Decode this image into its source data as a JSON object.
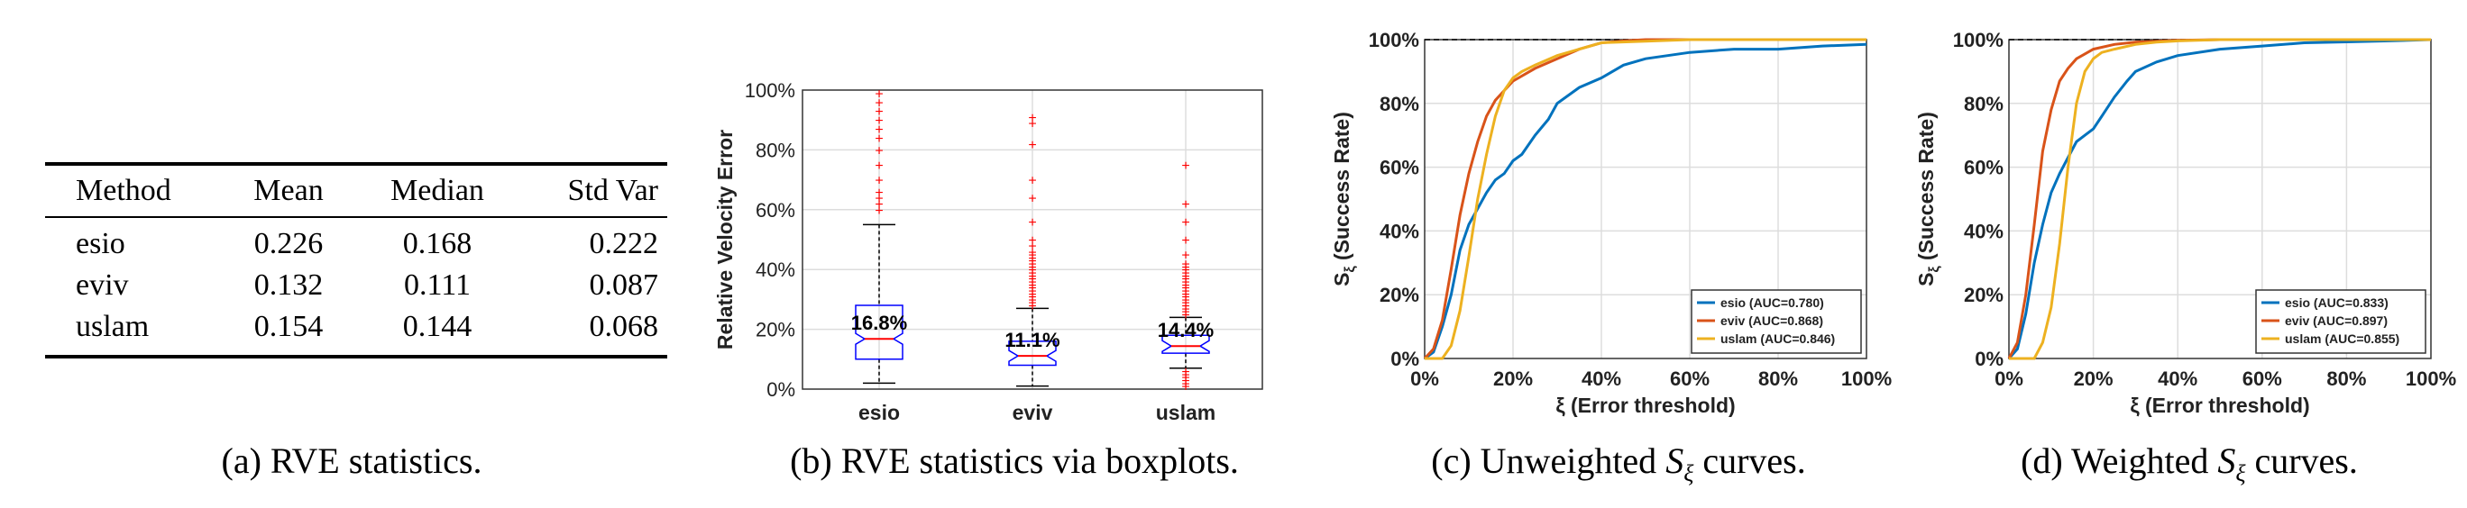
{
  "panel_a": {
    "caption_tag": "(a)",
    "caption_text": "RVE statistics.",
    "headers": [
      "Method",
      "Mean",
      "Median",
      "Std Var"
    ],
    "rows": [
      [
        "esio",
        "0.226",
        "0.168",
        "0.222"
      ],
      [
        "eviv",
        "0.132",
        "0.111",
        "0.087"
      ],
      [
        "uslam",
        "0.154",
        "0.144",
        "0.068"
      ]
    ]
  },
  "panel_b": {
    "caption_tag": "(b)",
    "caption_text": "RVE statistics via boxplots."
  },
  "panel_c": {
    "caption_tag": "(c)",
    "caption_pre": "Unweighted",
    "caption_sym": "S",
    "caption_sub": "ξ",
    "caption_post": "curves."
  },
  "panel_d": {
    "caption_tag": "(d)",
    "caption_pre": "Weighted",
    "caption_sym": "S",
    "caption_sub": "ξ",
    "caption_post": "curves."
  },
  "colors": {
    "esio": "#0072BD",
    "eviv": "#D95319",
    "uslam": "#EDB120",
    "box": "#0000FF",
    "median": "#FF0000",
    "outlier": "#FF0000",
    "grid": "#DDDDDD"
  },
  "chart_data": [
    {
      "type": "boxplot",
      "ylabel": "Relative Velocity Error",
      "ylim": [
        0,
        100
      ],
      "yticks": [
        "0%",
        "20%",
        "40%",
        "60%",
        "80%",
        "100%"
      ],
      "categories": [
        "esio",
        "eviv",
        "uslam"
      ],
      "grid": true,
      "boxes": [
        {
          "name": "esio",
          "whisker_low": 2,
          "q1": 10,
          "median": 16.8,
          "q3": 28,
          "whisker_high": 55,
          "label": "16.8%",
          "outliers": [
            60,
            62,
            64,
            66,
            70,
            75,
            80,
            84,
            87,
            90,
            93,
            96,
            99
          ]
        },
        {
          "name": "eviv",
          "whisker_low": 1,
          "q1": 8,
          "median": 11.1,
          "q3": 16,
          "whisker_high": 27,
          "label": "11.1%",
          "outliers": [
            28,
            29,
            30,
            31,
            32,
            33,
            34,
            35,
            36,
            37,
            38,
            39,
            40,
            41,
            42,
            43,
            44,
            45,
            46,
            48,
            50,
            56,
            64,
            70,
            82,
            89,
            91
          ]
        },
        {
          "name": "uslam",
          "whisker_low": 7,
          "q1": 12,
          "median": 14.4,
          "q3": 18,
          "whisker_high": 24,
          "label": "14.4%",
          "outliers": [
            1,
            2,
            3,
            4,
            5,
            6,
            25,
            26,
            27,
            28,
            29,
            30,
            31,
            32,
            33,
            34,
            35,
            36,
            37,
            38,
            39,
            40,
            41,
            42,
            45,
            50,
            56,
            62,
            75
          ]
        }
      ]
    },
    {
      "type": "line",
      "title": "",
      "xlabel": "ξ (Error threshold)",
      "ylabel": "S_ξ (Success Rate)",
      "xlim": [
        0,
        100
      ],
      "ylim": [
        0,
        100
      ],
      "xticks": [
        "0%",
        "20%",
        "40%",
        "60%",
        "80%",
        "100%"
      ],
      "yticks": [
        "0%",
        "20%",
        "40%",
        "60%",
        "80%",
        "100%"
      ],
      "grid": true,
      "legend_position": "bottom-right",
      "reference_line": 100,
      "series": [
        {
          "name": "esio (AUC=0.780)",
          "color_key": "esio",
          "x": [
            0,
            2,
            4,
            6,
            8,
            10,
            12,
            14,
            16,
            18,
            20,
            22,
            25,
            28,
            30,
            35,
            40,
            45,
            50,
            55,
            60,
            70,
            80,
            90,
            100
          ],
          "y": [
            0,
            2,
            10,
            20,
            34,
            42,
            47,
            52,
            56,
            58,
            62,
            64,
            70,
            75,
            80,
            85,
            88,
            92,
            94,
            95,
            96,
            97,
            97,
            98,
            98.5
          ]
        },
        {
          "name": "eviv (AUC=0.868)",
          "color_key": "eviv",
          "x": [
            0,
            2,
            4,
            6,
            8,
            10,
            12,
            14,
            16,
            18,
            20,
            25,
            30,
            35,
            40,
            45,
            50,
            60,
            80,
            100
          ],
          "y": [
            0,
            3,
            12,
            28,
            45,
            58,
            68,
            76,
            81,
            84,
            87,
            91,
            94,
            97,
            99,
            99.6,
            100,
            100,
            100,
            100
          ]
        },
        {
          "name": "uslam (AUC=0.846)",
          "color_key": "uslam",
          "x": [
            0,
            4,
            6,
            8,
            10,
            12,
            14,
            16,
            18,
            20,
            22,
            25,
            30,
            35,
            40,
            50,
            60,
            80,
            100
          ],
          "y": [
            0,
            0,
            4,
            15,
            32,
            50,
            64,
            76,
            84,
            88,
            90,
            92,
            95,
            97,
            99,
            99.5,
            100,
            100,
            100
          ]
        }
      ]
    },
    {
      "type": "line",
      "title": "",
      "xlabel": "ξ (Error threshold)",
      "ylabel": "S_ξ (Success Rate)",
      "xlim": [
        0,
        100
      ],
      "ylim": [
        0,
        100
      ],
      "xticks": [
        "0%",
        "20%",
        "40%",
        "60%",
        "80%",
        "100%"
      ],
      "yticks": [
        "0%",
        "20%",
        "40%",
        "60%",
        "80%",
        "100%"
      ],
      "grid": true,
      "legend_position": "bottom-right",
      "reference_line": 100,
      "series": [
        {
          "name": "esio (AUC=0.833)",
          "color_key": "esio",
          "x": [
            0,
            2,
            4,
            6,
            8,
            10,
            12,
            14,
            16,
            18,
            20,
            22,
            25,
            28,
            30,
            35,
            40,
            50,
            60,
            70,
            80,
            90,
            100
          ],
          "y": [
            0,
            3,
            14,
            30,
            42,
            52,
            58,
            63,
            68,
            70,
            72,
            76,
            82,
            87,
            90,
            93,
            95,
            97,
            98,
            99,
            99.3,
            99.6,
            100
          ]
        },
        {
          "name": "eviv (AUC=0.897)",
          "color_key": "eviv",
          "x": [
            0,
            2,
            4,
            6,
            8,
            10,
            12,
            14,
            16,
            18,
            20,
            25,
            30,
            40,
            50,
            60,
            80,
            100
          ],
          "y": [
            0,
            5,
            20,
            42,
            65,
            78,
            87,
            91,
            94,
            95.5,
            97,
            98.5,
            99.2,
            99.8,
            100,
            100,
            100,
            100
          ]
        },
        {
          "name": "uslam (AUC=0.855)",
          "color_key": "uslam",
          "x": [
            0,
            6,
            8,
            10,
            12,
            14,
            16,
            18,
            20,
            22,
            25,
            30,
            35,
            40,
            50,
            60,
            80,
            100
          ],
          "y": [
            0,
            0,
            5,
            16,
            36,
            60,
            80,
            90,
            94,
            96,
            97,
            98.5,
            99.2,
            99.6,
            100,
            100,
            100,
            100
          ]
        }
      ]
    }
  ]
}
